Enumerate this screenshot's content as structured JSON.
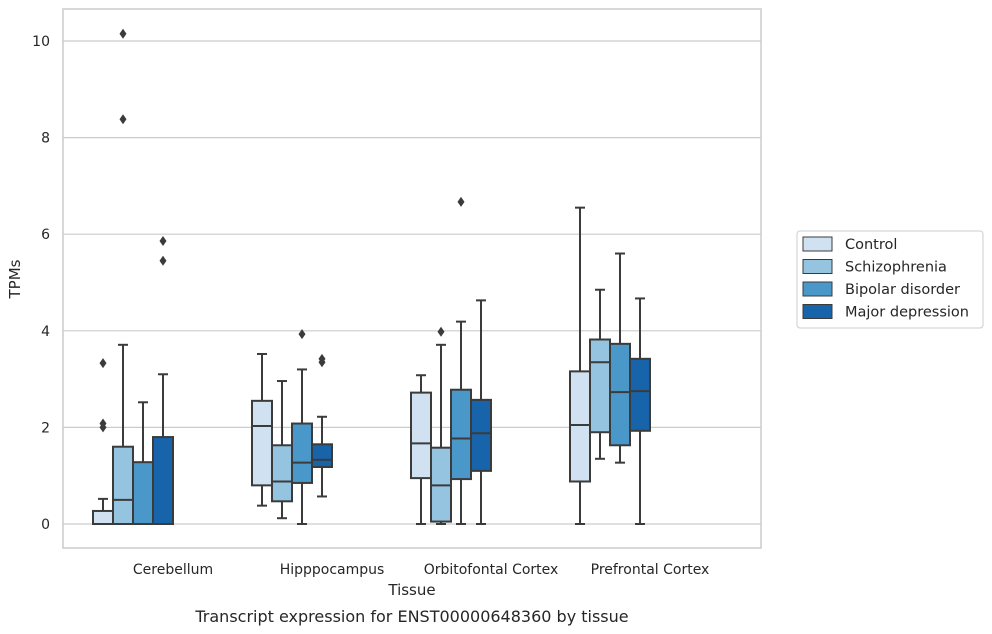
{
  "chart_data": {
    "type": "box",
    "title": "Transcript expression for ENST00000648360 by tissue",
    "xlabel": "Tissue",
    "ylabel": "TPMs",
    "ylim": [
      -0.5,
      10.65
    ],
    "yticks": [
      0,
      2,
      4,
      6,
      8,
      10
    ],
    "grid": true,
    "legend_position": "right",
    "categories": [
      "Cerebellum",
      "Hipppocampus",
      "Orbitofontal Cortex",
      "Prefrontal Cortex"
    ],
    "series": [
      {
        "name": "Control",
        "color": "#d0e1f2",
        "boxes": [
          {
            "whislo": 0,
            "q1": 0,
            "med": 0,
            "q3": 0.27,
            "whishi": 0.52,
            "fliers": [
              2.0,
              2.08,
              3.33
            ]
          },
          {
            "whislo": 0.38,
            "q1": 0.8,
            "med": 2.03,
            "q3": 2.55,
            "whishi": 3.52,
            "fliers": []
          },
          {
            "whislo": 0,
            "q1": 0.95,
            "med": 1.67,
            "q3": 2.72,
            "whishi": 3.08,
            "fliers": []
          },
          {
            "whislo": 0,
            "q1": 0.88,
            "med": 2.05,
            "q3": 3.16,
            "whishi": 6.55,
            "fliers": []
          }
        ]
      },
      {
        "name": "Schizophrenia",
        "color": "#94c4df",
        "boxes": [
          {
            "whislo": 0,
            "q1": 0,
            "med": 0.5,
            "q3": 1.6,
            "whishi": 3.71,
            "fliers": [
              8.38,
              10.15
            ]
          },
          {
            "whislo": 0.12,
            "q1": 0.47,
            "med": 0.88,
            "q3": 1.63,
            "whishi": 2.96,
            "fliers": []
          },
          {
            "whislo": 0,
            "q1": 0.05,
            "med": 0.8,
            "q3": 1.58,
            "whishi": 3.71,
            "fliers": [
              3.98
            ]
          },
          {
            "whislo": 1.35,
            "q1": 1.9,
            "med": 3.35,
            "q3": 3.82,
            "whishi": 4.85,
            "fliers": []
          }
        ]
      },
      {
        "name": "Bipolar disorder",
        "color": "#4a98c9",
        "boxes": [
          {
            "whislo": 0,
            "q1": 0,
            "med": 0,
            "q3": 1.28,
            "whishi": 2.52,
            "fliers": []
          },
          {
            "whislo": 0,
            "q1": 0.85,
            "med": 1.27,
            "q3": 2.08,
            "whishi": 3.2,
            "fliers": [
              3.93
            ]
          },
          {
            "whislo": 0,
            "q1": 0.93,
            "med": 1.77,
            "q3": 2.78,
            "whishi": 4.19,
            "fliers": [
              6.67
            ]
          },
          {
            "whislo": 1.27,
            "q1": 1.63,
            "med": 2.73,
            "q3": 3.73,
            "whishi": 5.6,
            "fliers": []
          }
        ]
      },
      {
        "name": "Major depression",
        "color": "#1764ab",
        "boxes": [
          {
            "whislo": 0,
            "q1": 0,
            "med": 0,
            "q3": 1.8,
            "whishi": 3.1,
            "fliers": [
              5.45,
              5.86
            ]
          },
          {
            "whislo": 0.57,
            "q1": 1.18,
            "med": 1.33,
            "q3": 1.65,
            "whishi": 2.22,
            "fliers": [
              3.35,
              3.42
            ]
          },
          {
            "whislo": 0,
            "q1": 1.1,
            "med": 1.88,
            "q3": 2.57,
            "whishi": 4.63,
            "fliers": []
          },
          {
            "whislo": 0,
            "q1": 1.93,
            "med": 2.75,
            "q3": 3.42,
            "whishi": 4.67,
            "fliers": []
          }
        ]
      }
    ]
  }
}
